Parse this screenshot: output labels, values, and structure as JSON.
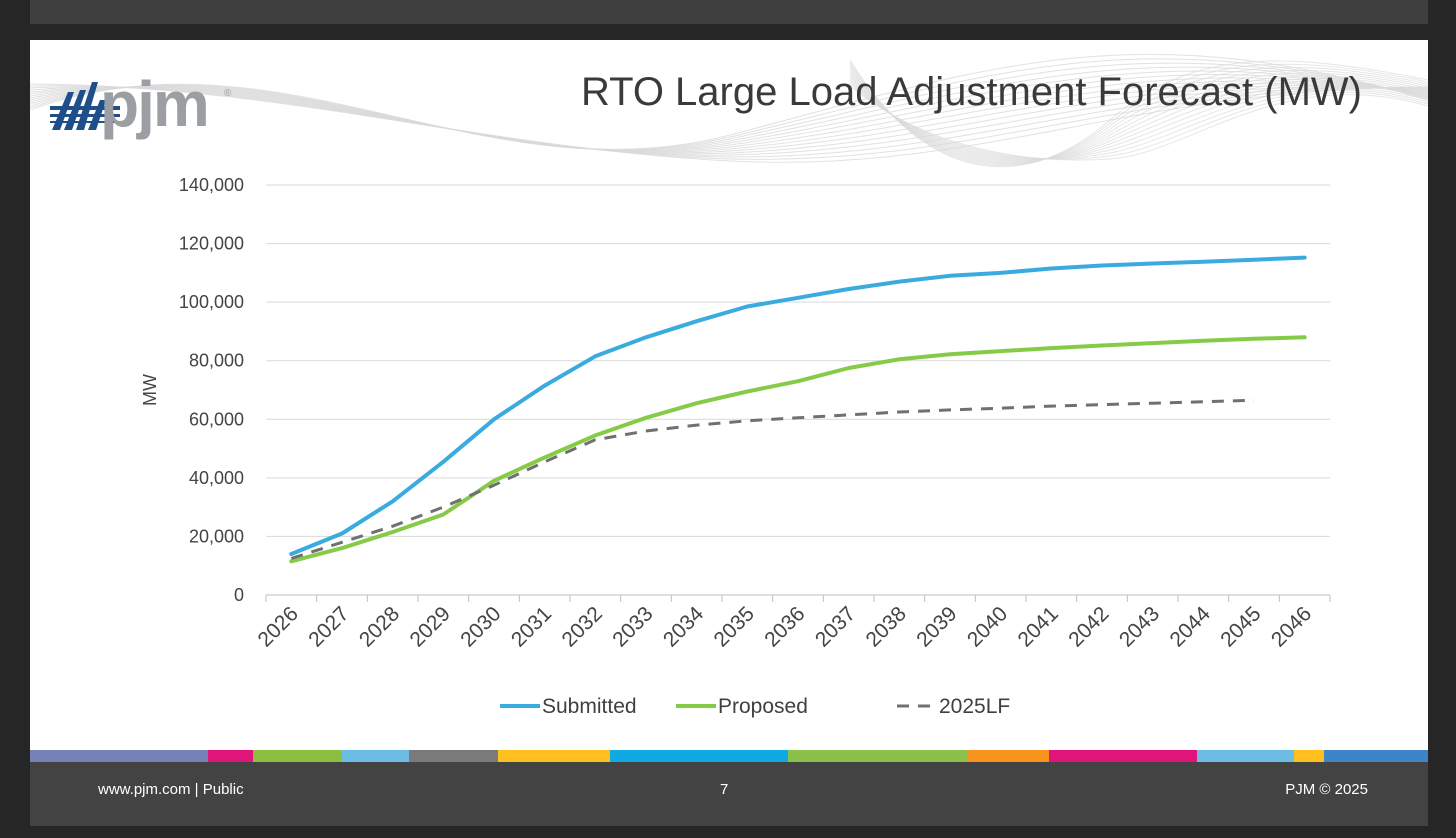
{
  "slide": {
    "logo_text": "pjm",
    "logo_registered": "®",
    "title": "RTO Large Load Adjustment Forecast (MW)",
    "footer_left": "www.pjm.com | Public",
    "footer_center": "7",
    "footer_right": "PJM © 2025",
    "color_strip": [
      {
        "color": "#7581b8",
        "weight": 12
      },
      {
        "color": "#e0147b",
        "weight": 3
      },
      {
        "color": "#8cbf3f",
        "weight": 6
      },
      {
        "color": "#6cbde4",
        "weight": 4.5
      },
      {
        "color": "#7a7a7a",
        "weight": 6
      },
      {
        "color": "#ffbf1f",
        "weight": 7.5
      },
      {
        "color": "#10a9e3",
        "weight": 12
      },
      {
        "color": "#8bc148",
        "weight": 12
      },
      {
        "color": "#f7941d",
        "weight": 5.5
      },
      {
        "color": "#e0147b",
        "weight": 10
      },
      {
        "color": "#6cbde4",
        "weight": 6.5
      },
      {
        "color": "#ffbf1f",
        "weight": 2
      },
      {
        "color": "#3d85c6",
        "weight": 7
      }
    ]
  },
  "chart_data": {
    "type": "line",
    "title": "RTO Large Load Adjustment Forecast (MW)",
    "xlabel": "",
    "ylabel": "MW",
    "ylim": [
      0,
      140000
    ],
    "yticks": [
      0,
      20000,
      40000,
      60000,
      80000,
      100000,
      120000,
      140000
    ],
    "ytick_labels": [
      "0",
      "20,000",
      "40,000",
      "60,000",
      "80,000",
      "100,000",
      "120,000",
      "140,000"
    ],
    "categories": [
      "2026",
      "2027",
      "2028",
      "2029",
      "2030",
      "2031",
      "2032",
      "2033",
      "2034",
      "2035",
      "2036",
      "2037",
      "2038",
      "2039",
      "2040",
      "2041",
      "2042",
      "2043",
      "2044",
      "2045",
      "2046"
    ],
    "grid": true,
    "legend_position": "bottom",
    "series": [
      {
        "name": "Submitted",
        "color": "#3aabdf",
        "style": "solid",
        "values": [
          14000,
          21000,
          32000,
          45500,
          60000,
          71500,
          81500,
          88000,
          93500,
          98500,
          101500,
          104500,
          107000,
          109000,
          110000,
          111500,
          112500,
          113200,
          113800,
          114500,
          115200
        ]
      },
      {
        "name": "Proposed",
        "color": "#86cb48",
        "style": "solid",
        "values": [
          11500,
          16000,
          21500,
          27500,
          39000,
          47000,
          54500,
          60500,
          65500,
          69500,
          73000,
          77500,
          80500,
          82200,
          83300,
          84300,
          85200,
          86000,
          86800,
          87500,
          88000
        ]
      },
      {
        "name": "2025LF",
        "color": "#707070",
        "style": "dashed",
        "values": [
          12500,
          18000,
          23500,
          30000,
          37500,
          45500,
          53000,
          56000,
          58000,
          59500,
          60500,
          61500,
          62500,
          63200,
          63800,
          64500,
          65000,
          65500,
          66000,
          66500,
          null
        ]
      }
    ]
  }
}
